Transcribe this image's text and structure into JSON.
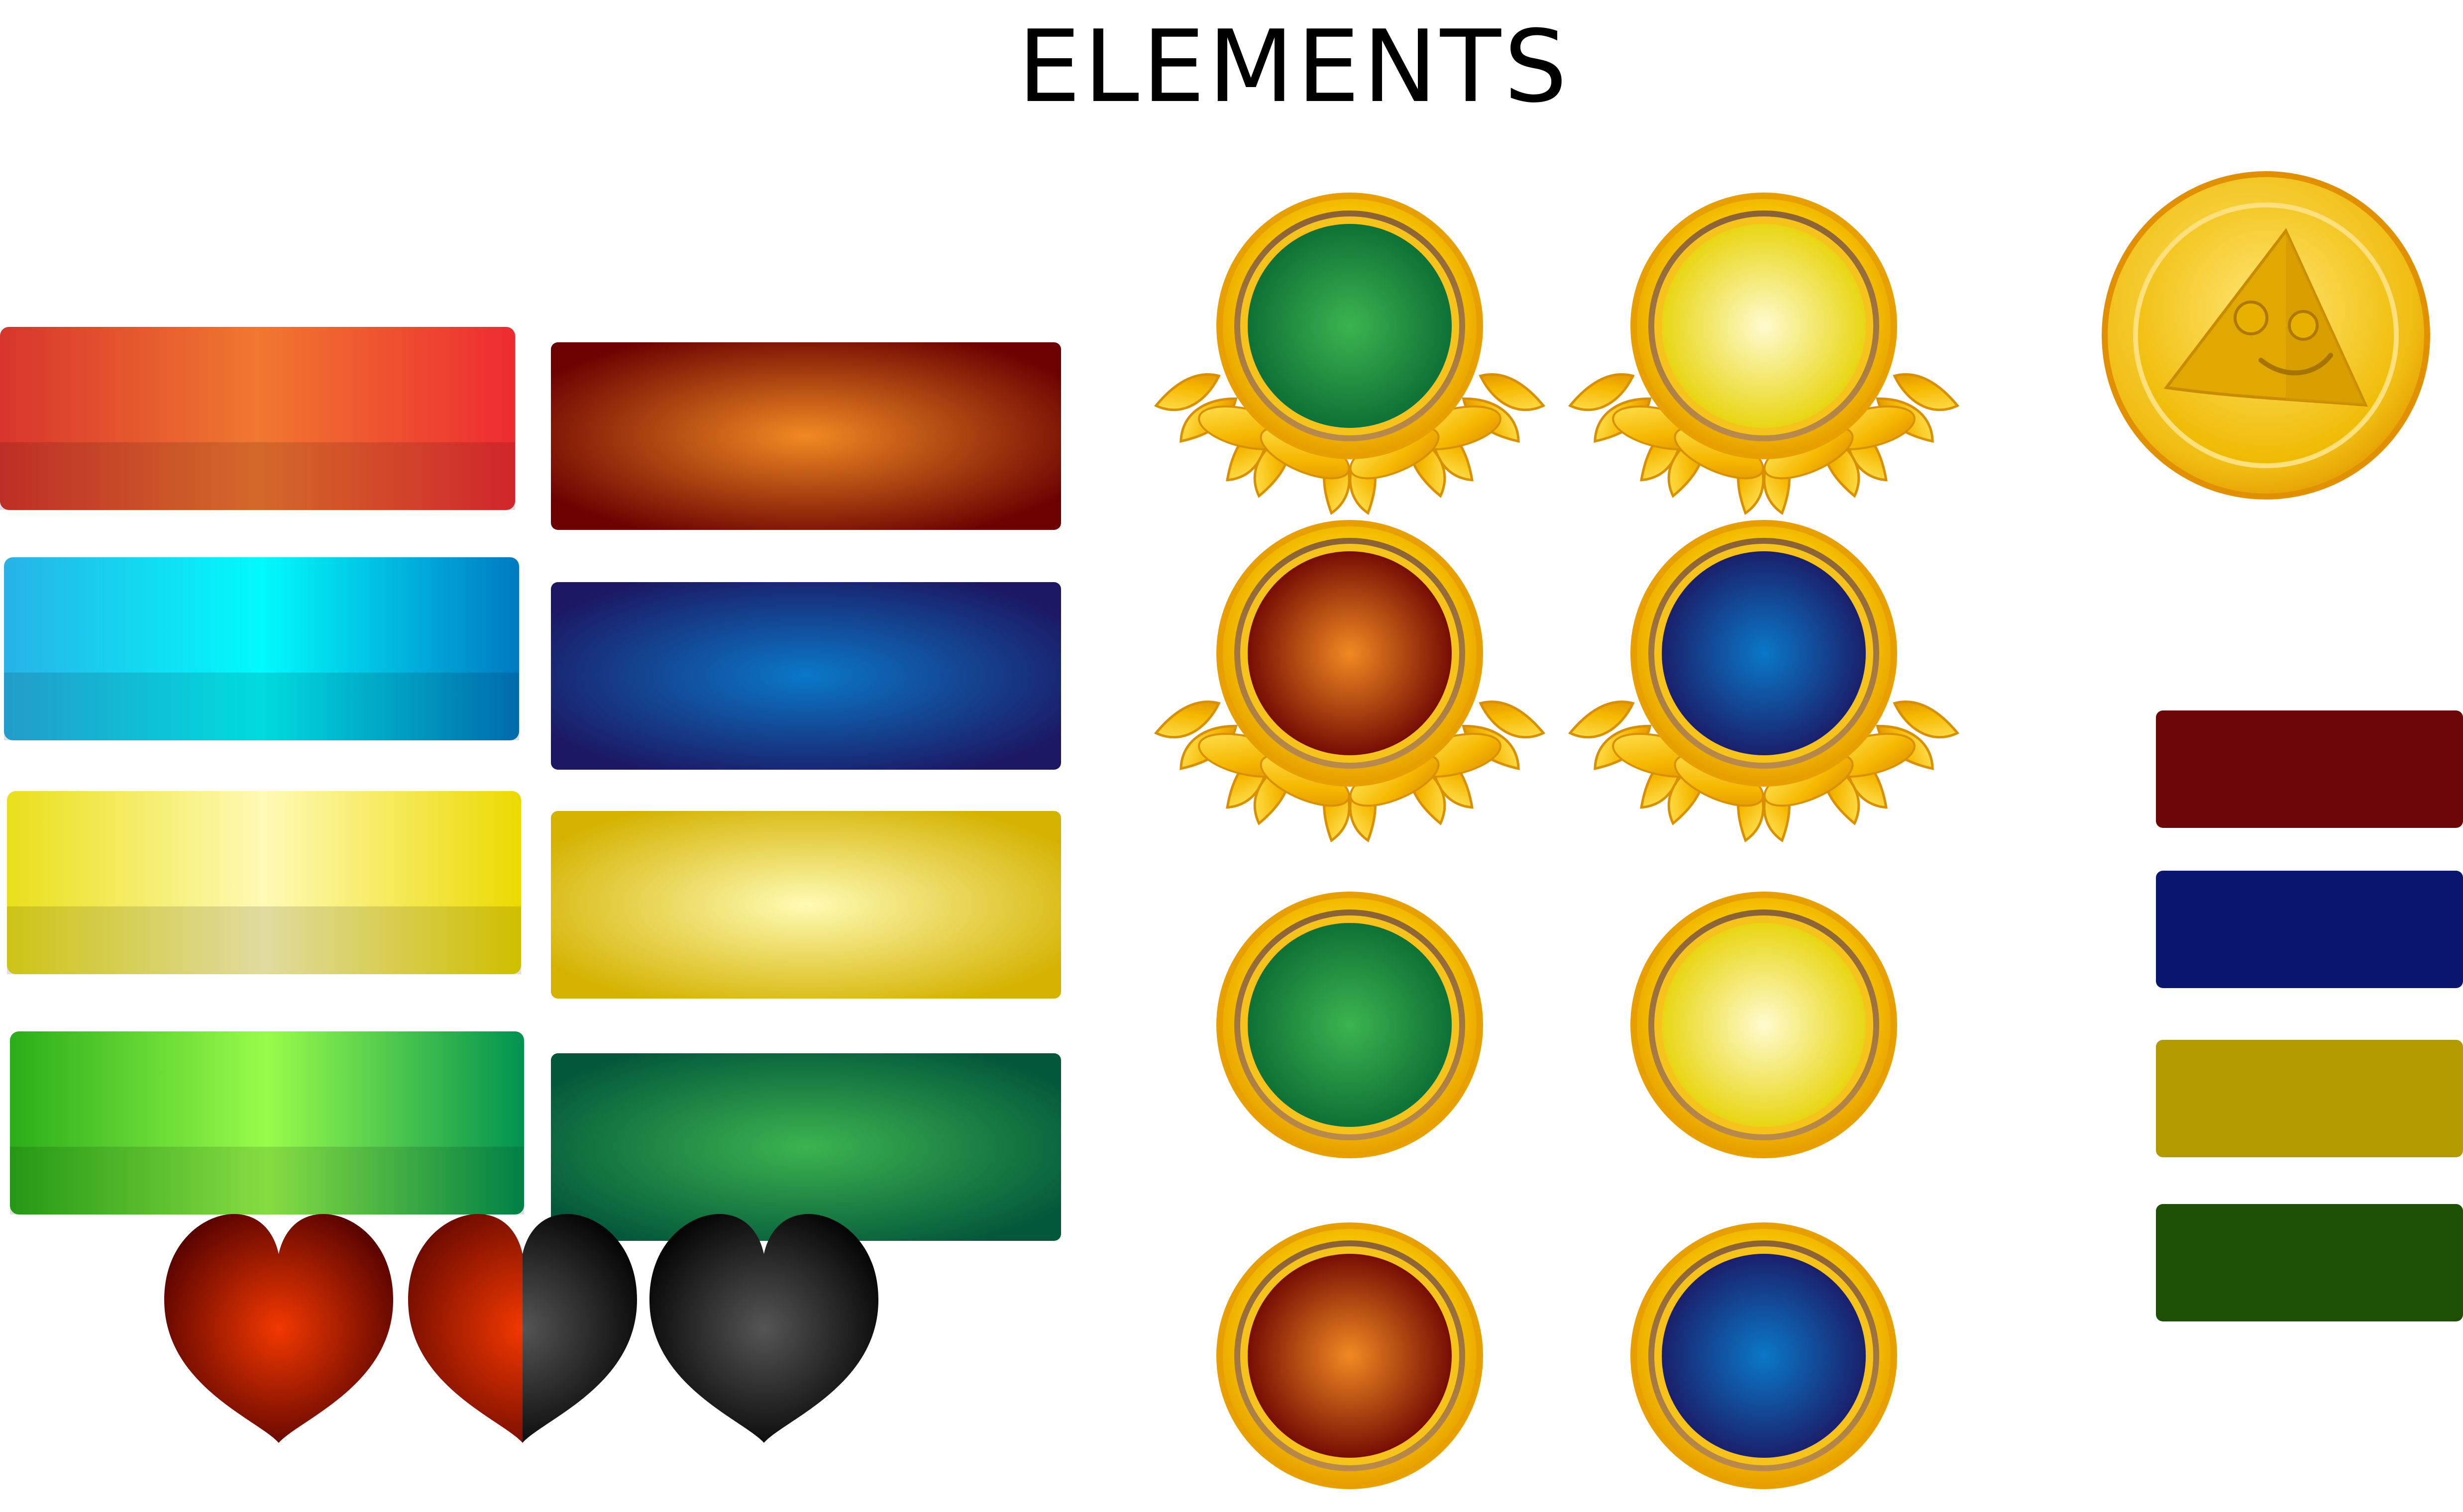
{
  "header": {
    "title": "ELEMENTS"
  },
  "palette": {
    "orange_bar": [
      "#d8352c",
      "#f07830",
      "#ed2b31"
    ],
    "cyan_bar": [
      "#28b2e6",
      "#00fbfd",
      "#0079c3"
    ],
    "yellow_bar": [
      "#eadf1a",
      "#fffab6",
      "#ecd900"
    ],
    "green_bar": [
      "#2aad19",
      "#99fc4b",
      "#009250"
    ],
    "radial_red": [
      "#f08a22",
      "#6b0101"
    ],
    "radial_blue": [
      "#0a78c8",
      "#1c1762"
    ],
    "radial_yellow": [
      "#fffbb4",
      "#d4b200"
    ],
    "radial_green": [
      "#3cb44f",
      "#03583b"
    ],
    "flat": [
      "#6d0606",
      "#091670",
      "#b39a00",
      "#1d5004"
    ],
    "gold": [
      "#ffe74a",
      "#f5b800",
      "#e59400",
      "#8e6a3c"
    ],
    "heart_red": [
      "#f23800",
      "#500000"
    ],
    "heart_black": [
      "#555555",
      "#000000"
    ]
  },
  "icons": [
    "gradient-bar",
    "radial-panel",
    "laurel-badge",
    "round-badge",
    "pizza-coin-icon",
    "flat-bar",
    "heart-full-icon",
    "heart-half-icon",
    "heart-empty-icon"
  ]
}
